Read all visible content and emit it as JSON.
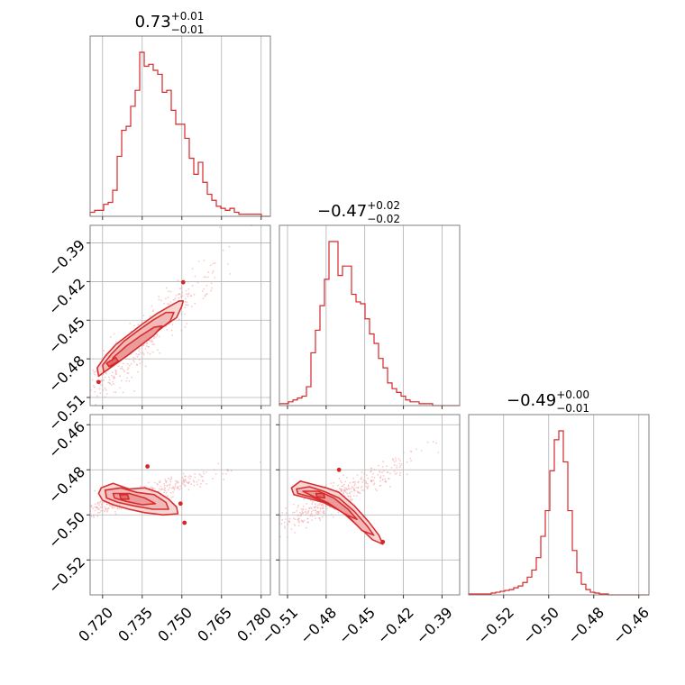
{
  "chart_data": {
    "type": "corner",
    "color": "#d62728",
    "scatter_color": "#f4a6a8",
    "grid": true,
    "params": [
      {
        "title_main": "0.73",
        "title_plus": "+0.01",
        "title_minus": "−0.01",
        "range": [
          0.7153,
          0.7835
        ],
        "ticks": [
          "0.720",
          "0.735",
          "0.750",
          "0.765",
          "0.780"
        ],
        "tick_values": [
          0.72,
          0.735,
          0.75,
          0.765,
          0.78
        ],
        "hist": [
          2,
          3,
          3,
          6,
          7,
          13,
          30,
          43,
          45,
          55,
          63,
          82,
          75,
          76,
          73,
          71,
          62,
          63,
          53,
          46,
          46,
          39,
          29,
          21,
          27,
          17,
          11,
          8,
          5,
          4,
          3,
          4,
          2,
          1,
          1,
          1,
          1,
          1,
          0,
          0
        ]
      },
      {
        "title_main": "−0.47",
        "title_plus": "+0.02",
        "title_minus": "−0.02",
        "range": [
          -0.5163,
          -0.3763
        ],
        "ticks": [
          "−0.51",
          "−0.48",
          "−0.45",
          "−0.42",
          "−0.39"
        ],
        "tick_values": [
          -0.51,
          -0.48,
          -0.45,
          -0.42,
          -0.39
        ],
        "hist": [
          1,
          1,
          2,
          3,
          4,
          5,
          10,
          28,
          40,
          53,
          67,
          87,
          87,
          69,
          74,
          74,
          59,
          55,
          54,
          46,
          38,
          33,
          25,
          20,
          12,
          9,
          7,
          5,
          3,
          2,
          2,
          1,
          1,
          1,
          0,
          0,
          0,
          0,
          0,
          0
        ]
      },
      {
        "title_main": "−0.49",
        "title_plus": "+0.00",
        "title_minus": "−0.01",
        "range": [
          -0.5355,
          -0.4555
        ],
        "ticks": [
          "−0.52",
          "−0.50",
          "−0.48",
          "−0.46"
        ],
        "tick_values": [
          -0.52,
          -0.5,
          -0.48,
          -0.46
        ],
        "hist": [
          1,
          1,
          1,
          1,
          1,
          2,
          3,
          4,
          5,
          6,
          8,
          10,
          14,
          20,
          28,
          42,
          66,
          95,
          140,
          175,
          185,
          150,
          95,
          50,
          25,
          12,
          6,
          3,
          2,
          1,
          1,
          0,
          0,
          0,
          0,
          0,
          0,
          0,
          0,
          0
        ]
      }
    ],
    "panels_2d": [
      {
        "x_param": 0,
        "y_param": 1,
        "center": [
          0.7335,
          -0.4685
        ],
        "major": [
          0.012,
          0.025
        ],
        "minor_perp": 0.35,
        "contours": [
          [
            [
              0.7185,
              -0.4935
            ],
            [
              0.723,
              -0.4865
            ],
            [
              0.728,
              -0.479
            ],
            [
              0.733,
              -0.471
            ],
            [
              0.738,
              -0.463
            ],
            [
              0.743,
              -0.455
            ],
            [
              0.748,
              -0.448
            ],
            [
              0.75,
              -0.439
            ],
            [
              0.7505,
              -0.435
            ],
            [
              0.749,
              -0.435
            ],
            [
              0.7455,
              -0.439
            ],
            [
              0.7405,
              -0.445
            ],
            [
              0.735,
              -0.453
            ],
            [
              0.73,
              -0.461
            ],
            [
              0.725,
              -0.469
            ],
            [
              0.721,
              -0.478
            ],
            [
              0.718,
              -0.487
            ]
          ],
          [
            [
              0.7205,
              -0.4905
            ],
            [
              0.726,
              -0.4825
            ],
            [
              0.731,
              -0.4745
            ],
            [
              0.736,
              -0.466
            ],
            [
              0.741,
              -0.458
            ],
            [
              0.7455,
              -0.451
            ],
            [
              0.747,
              -0.444
            ],
            [
              0.744,
              -0.444
            ],
            [
              0.739,
              -0.45
            ],
            [
              0.7335,
              -0.458
            ],
            [
              0.728,
              -0.4665
            ],
            [
              0.7235,
              -0.476
            ],
            [
              0.72,
              -0.485
            ]
          ],
          [
            [
              0.723,
              -0.4865
            ],
            [
              0.729,
              -0.478
            ],
            [
              0.7345,
              -0.4695
            ],
            [
              0.7395,
              -0.4615
            ],
            [
              0.7425,
              -0.4545
            ],
            [
              0.7395,
              -0.4555
            ],
            [
              0.7345,
              -0.462
            ],
            [
              0.729,
              -0.47
            ],
            [
              0.724,
              -0.479
            ]
          ],
          [
            [
              0.7225,
              -0.486
            ],
            [
              0.726,
              -0.482
            ],
            [
              0.725,
              -0.479
            ],
            [
              0.7215,
              -0.4835
            ]
          ]
        ],
        "extra_dots": [
          [
            0.7505,
            -0.4205
          ],
          [
            0.7185,
            -0.498
          ]
        ],
        "scatter_n": 420
      },
      {
        "x_param": 0,
        "y_param": 2,
        "center": [
          0.733,
          -0.492
        ],
        "major": [
          0.011,
          0.004
        ],
        "minor_perp": 0.45,
        "contours": [
          [
            [
              0.7195,
              -0.488
            ],
            [
              0.724,
              -0.486
            ],
            [
              0.73,
              -0.4885
            ],
            [
              0.736,
              -0.488
            ],
            [
              0.741,
              -0.49
            ],
            [
              0.745,
              -0.493
            ],
            [
              0.748,
              -0.4965
            ],
            [
              0.7485,
              -0.4995
            ],
            [
              0.743,
              -0.5
            ],
            [
              0.736,
              -0.499
            ],
            [
              0.73,
              -0.4975
            ],
            [
              0.724,
              -0.4955
            ],
            [
              0.72,
              -0.4935
            ],
            [
              0.7185,
              -0.4905
            ]
          ],
          [
            [
              0.721,
              -0.489
            ],
            [
              0.727,
              -0.488
            ],
            [
              0.733,
              -0.49
            ],
            [
              0.7395,
              -0.491
            ],
            [
              0.744,
              -0.4945
            ],
            [
              0.745,
              -0.4975
            ],
            [
              0.739,
              -0.4975
            ],
            [
              0.732,
              -0.496
            ],
            [
              0.726,
              -0.4945
            ],
            [
              0.7215,
              -0.4925
            ]
          ],
          [
            [
              0.724,
              -0.4905
            ],
            [
              0.73,
              -0.4905
            ],
            [
              0.736,
              -0.4925
            ],
            [
              0.74,
              -0.495
            ],
            [
              0.735,
              -0.4955
            ],
            [
              0.729,
              -0.494
            ],
            [
              0.7245,
              -0.4925
            ]
          ],
          [
            [
              0.7265,
              -0.491
            ],
            [
              0.7295,
              -0.491
            ],
            [
              0.73,
              -0.493
            ],
            [
              0.727,
              -0.493
            ]
          ]
        ],
        "extra_dots": [
          [
            0.737,
            -0.4785
          ],
          [
            0.751,
            -0.5035
          ],
          [
            0.7495,
            -0.495
          ]
        ],
        "scatter_n": 420
      },
      {
        "x_param": 1,
        "y_param": 2,
        "center": [
          -0.472,
          -0.492
        ],
        "major": [
          0.022,
          0.0065
        ],
        "minor_perp": 0.4,
        "contours": [
          [
            [
              -0.507,
              -0.488
            ],
            [
              -0.5,
              -0.485
            ],
            [
              -0.49,
              -0.4865
            ],
            [
              -0.48,
              -0.488
            ],
            [
              -0.47,
              -0.49
            ],
            [
              -0.458,
              -0.496
            ],
            [
              -0.447,
              -0.503
            ],
            [
              -0.439,
              -0.509
            ],
            [
              -0.436,
              -0.513
            ],
            [
              -0.444,
              -0.511
            ],
            [
              -0.455,
              -0.505
            ],
            [
              -0.468,
              -0.4985
            ],
            [
              -0.482,
              -0.4945
            ],
            [
              -0.495,
              -0.4925
            ],
            [
              -0.505,
              -0.491
            ]
          ],
          [
            [
              -0.503,
              -0.4885
            ],
            [
              -0.493,
              -0.4875
            ],
            [
              -0.482,
              -0.4895
            ],
            [
              -0.47,
              -0.4925
            ],
            [
              -0.458,
              -0.4985
            ],
            [
              -0.448,
              -0.505
            ],
            [
              -0.443,
              -0.509
            ],
            [
              -0.452,
              -0.507
            ],
            [
              -0.464,
              -0.5
            ],
            [
              -0.478,
              -0.495
            ],
            [
              -0.492,
              -0.492
            ],
            [
              -0.502,
              -0.4905
            ]
          ],
          [
            [
              -0.498,
              -0.4895
            ],
            [
              -0.486,
              -0.4895
            ],
            [
              -0.474,
              -0.4925
            ],
            [
              -0.463,
              -0.4975
            ],
            [
              -0.456,
              -0.502
            ],
            [
              -0.466,
              -0.4995
            ],
            [
              -0.479,
              -0.4945
            ],
            [
              -0.491,
              -0.4915
            ]
          ],
          [
            [
              -0.488,
              -0.4905
            ],
            [
              -0.482,
              -0.4905
            ],
            [
              -0.481,
              -0.4925
            ],
            [
              -0.487,
              -0.492
            ]
          ]
        ],
        "extra_dots": [
          [
            -0.47,
            -0.48
          ],
          [
            -0.436,
            -0.512
          ]
        ],
        "scatter_n": 420
      }
    ]
  }
}
